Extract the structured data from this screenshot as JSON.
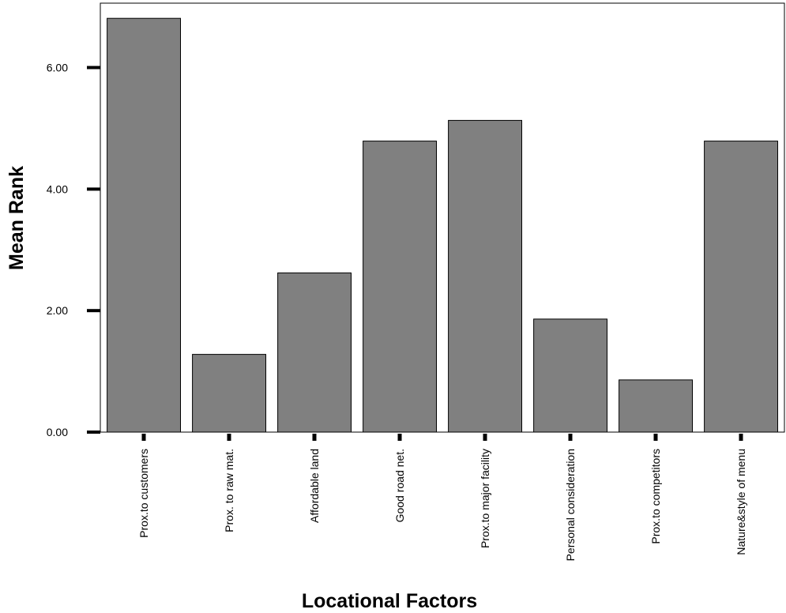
{
  "chart_data": {
    "type": "bar",
    "title": "",
    "xlabel": "Locational Factors",
    "ylabel": "Mean Rank",
    "categories": [
      "Prox.to customers",
      "Prox. to raw mat.",
      "Affordable land",
      "Good road net.",
      "Prox.to major facility",
      "Personal consideration",
      "Prox.to competitors",
      "Nature&style of menu"
    ],
    "values": [
      6.81,
      1.28,
      2.62,
      4.79,
      5.13,
      1.86,
      0.86,
      4.79
    ],
    "yticks": [
      "0.00",
      "2.00",
      "4.00",
      "6.00"
    ],
    "ylim": [
      0,
      7.06
    ],
    "bar_color": "#808080",
    "grid": false
  }
}
